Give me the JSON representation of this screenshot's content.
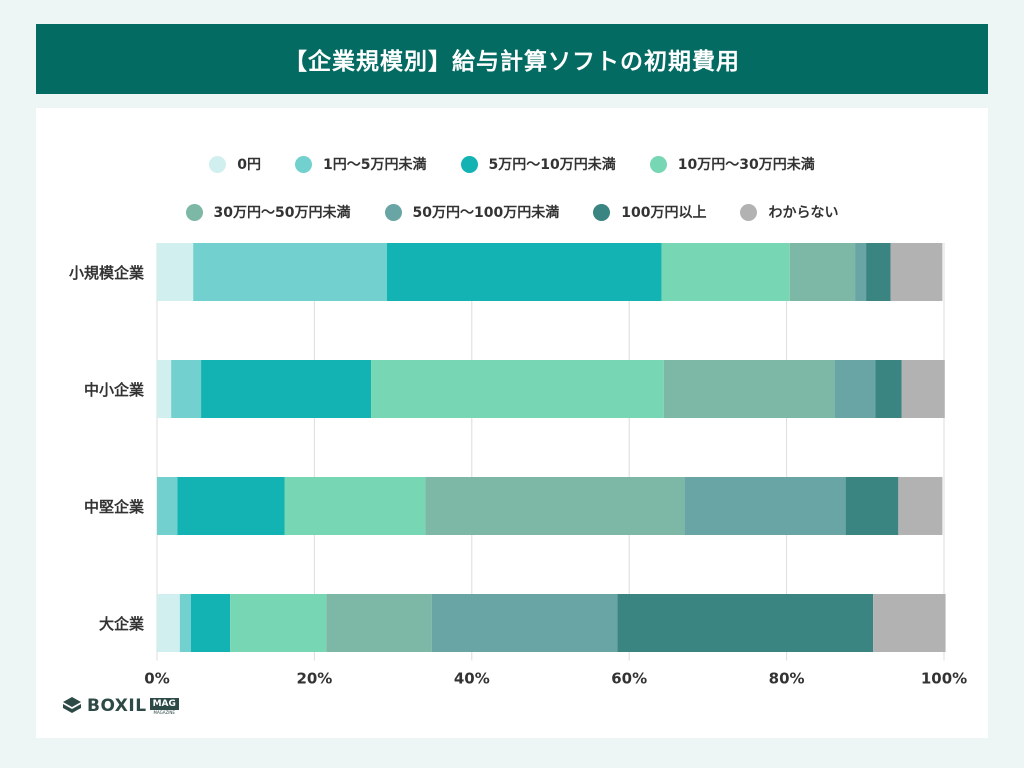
{
  "title": "【企業規模別】給与計算ソフトの初期費用",
  "logo": {
    "brand": "BOXIL",
    "badge": "MAG",
    "badge_sub": "MAGAZINE"
  },
  "chart_data": {
    "type": "bar",
    "orientation": "horizontal",
    "stacked": true,
    "categories": [
      "小規模企業",
      "中小企業",
      "中堅企業",
      "大企業"
    ],
    "series": [
      {
        "name": "0円",
        "color": "#d1efee",
        "values": [
          4.6,
          1.8,
          0.0,
          2.9
        ]
      },
      {
        "name": "1円〜5万円未満",
        "color": "#72d1cf",
        "values": [
          24.6,
          3.8,
          2.6,
          1.4
        ]
      },
      {
        "name": "5万円〜10万円未満",
        "color": "#13b3b3",
        "values": [
          34.9,
          21.6,
          13.6,
          5.0
        ]
      },
      {
        "name": "10万円〜30万円未満",
        "color": "#77d6b4",
        "values": [
          16.3,
          37.2,
          17.9,
          12.2
        ]
      },
      {
        "name": "30万円〜50万円未満",
        "color": "#7db8a6",
        "values": [
          8.3,
          21.7,
          32.9,
          13.4
        ]
      },
      {
        "name": "50万円〜100万円未満",
        "color": "#69a5a4",
        "values": [
          1.4,
          5.2,
          20.5,
          23.6
        ]
      },
      {
        "name": "100万円以上",
        "color": "#3a8482",
        "values": [
          3.1,
          3.3,
          6.7,
          32.5
        ]
      },
      {
        "name": "わからない",
        "color": "#b2b2b2",
        "values": [
          6.6,
          5.5,
          5.6,
          9.2
        ]
      }
    ],
    "xlim": [
      0,
      100
    ],
    "x_ticks": [
      "0%",
      "20%",
      "40%",
      "60%",
      "80%",
      "100%"
    ],
    "grid": true,
    "legend_position": "top"
  }
}
